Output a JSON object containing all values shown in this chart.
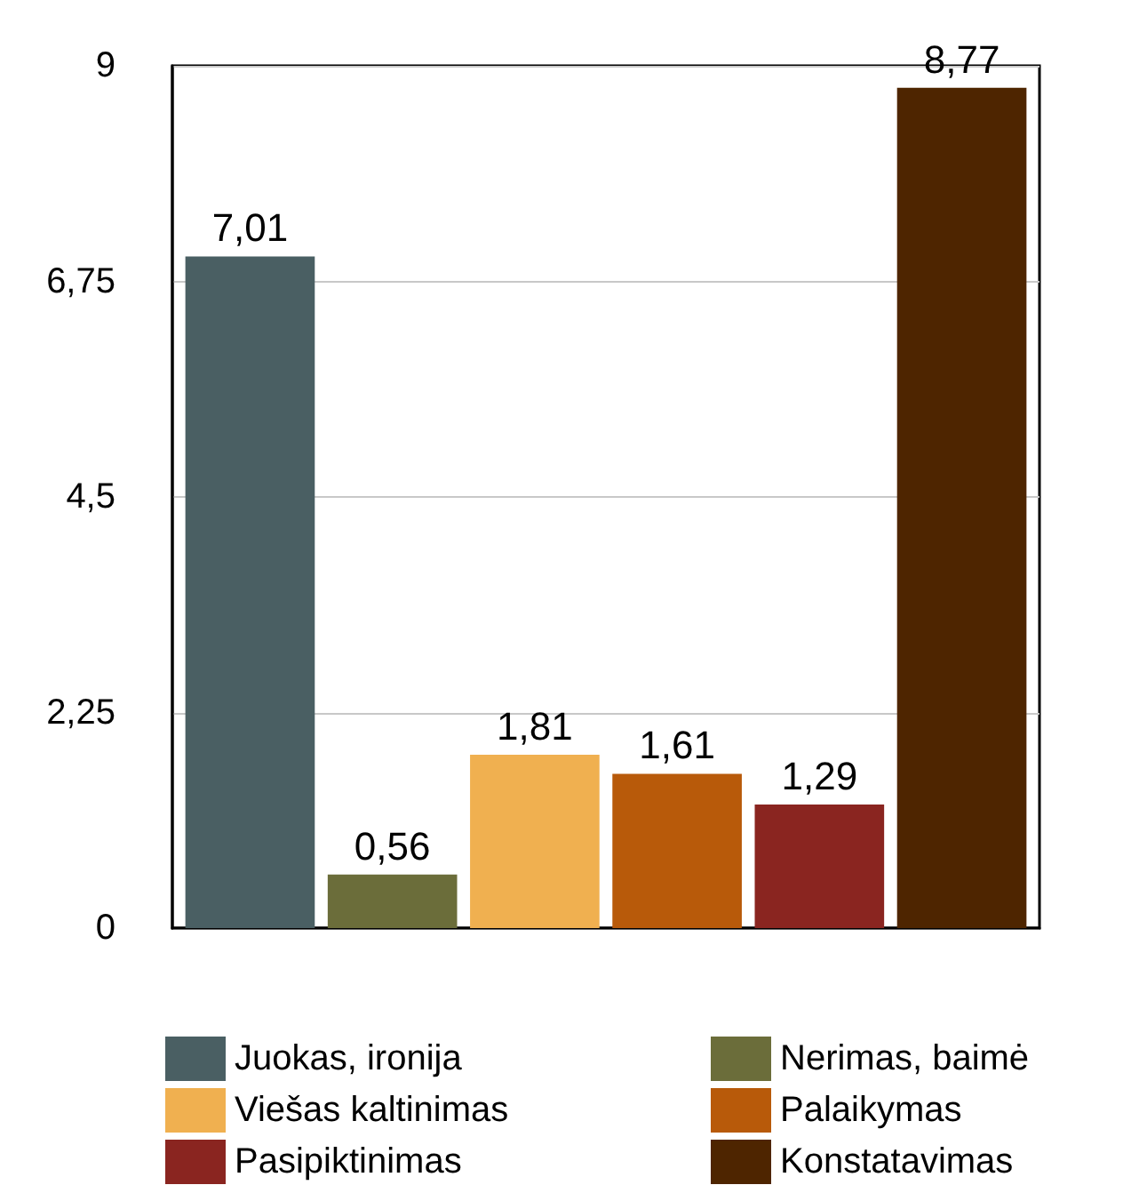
{
  "chart_data": {
    "type": "bar",
    "categories": [
      null
    ],
    "series": [
      {
        "name": "Juokas, ironija",
        "color": "#4a5f63",
        "values": [
          7.01
        ],
        "value_labels": [
          "7,01"
        ]
      },
      {
        "name": "Nerimas, baimė",
        "color": "#6b6d3a",
        "values": [
          0.56
        ],
        "value_labels": [
          "0,56"
        ]
      },
      {
        "name": "Viešas kaltinimas",
        "color": "#f0b050",
        "values": [
          1.81
        ],
        "value_labels": [
          "1,81"
        ]
      },
      {
        "name": "Palaikymas",
        "color": "#b85a0a",
        "values": [
          1.61
        ],
        "value_labels": [
          "1,61"
        ]
      },
      {
        "name": "Pasipiktinimas",
        "color": "#8a2520",
        "values": [
          1.29
        ],
        "value_labels": [
          "1,29"
        ]
      },
      {
        "name": "Konstatavimas",
        "color": "#4e2500",
        "values": [
          8.77
        ],
        "value_labels": [
          "8,77"
        ]
      }
    ],
    "ylim": [
      0,
      9
    ],
    "yticks": [
      0,
      {
        "value": 2.25,
        "label": "2,25"
      },
      {
        "value": 4.5,
        "label": "4,5"
      },
      {
        "value": 6.75,
        "label": "6,75"
      },
      9
    ],
    "grid": "y",
    "legend": "bottom"
  }
}
